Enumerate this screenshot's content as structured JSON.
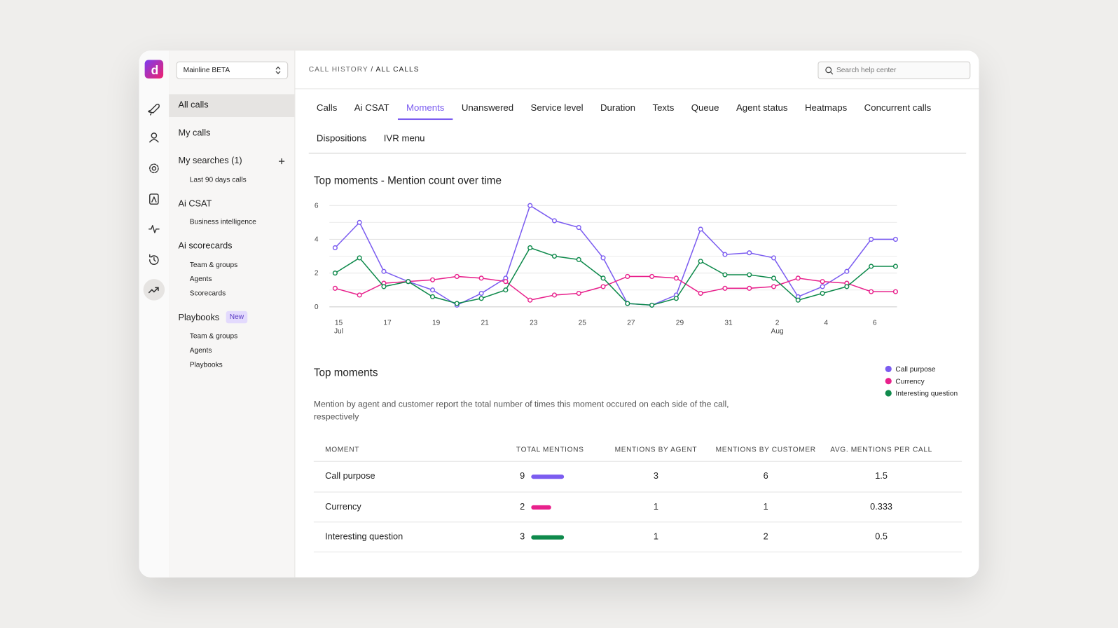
{
  "workspace": "Mainline BETA",
  "sidebar": {
    "sections": [
      {
        "title": "All calls",
        "items": []
      },
      {
        "title": "My calls",
        "items": []
      },
      {
        "title": "My searches (1)",
        "items": [
          "Last 90 days calls"
        ]
      },
      {
        "title": "Ai  CSAT",
        "items": [
          "Business intelligence"
        ]
      },
      {
        "title": "Ai scorecards",
        "items": [
          "Team & groups",
          "Agents",
          "Scorecards"
        ]
      },
      {
        "title": "Playbooks",
        "badge": "New",
        "items": [
          "Team & groups",
          "Agents",
          "Playbooks"
        ]
      }
    ],
    "active": 0
  },
  "header": {
    "parent": "CALL HISTORY",
    "separator": "/",
    "current": "ALL CALLS",
    "search_placeholder": "Search help center"
  },
  "tabs": {
    "items": [
      "Calls",
      "Ai CSAT",
      "Moments",
      "Unanswered",
      "Service level",
      "Duration",
      "Texts",
      "Queue",
      "Agent status",
      "Heatmaps",
      "Concurrent calls",
      "Dispositions",
      "IVR menu"
    ],
    "active": 2
  },
  "chart_data": {
    "type": "line",
    "title": "Top moments - Mention count over time",
    "categories": [
      "15 Jul",
      null,
      "17",
      null,
      "19",
      null,
      "21",
      null,
      "23",
      null,
      "25",
      null,
      "27",
      null,
      "29",
      null,
      "31",
      null,
      "2 Aug",
      null,
      "4",
      null,
      "6",
      null
    ],
    "series": [
      {
        "name": "Call purpose",
        "color": "#7b5cf0",
        "values": [
          3.5,
          5.0,
          2.1,
          1.5,
          1.0,
          0.1,
          0.8,
          1.7,
          6.0,
          5.1,
          4.7,
          2.9,
          0.2,
          0.1,
          0.7,
          4.6,
          3.1,
          3.2,
          2.9,
          0.6,
          1.2,
          2.1,
          4.0,
          4.0
        ]
      },
      {
        "name": "Currency",
        "color": "#e8218c",
        "values": [
          1.1,
          0.7,
          1.4,
          1.5,
          1.6,
          1.8,
          1.7,
          1.5,
          0.4,
          0.7,
          0.8,
          1.2,
          1.8,
          1.8,
          1.7,
          0.8,
          1.1,
          1.1,
          1.2,
          1.7,
          1.5,
          1.4,
          0.9,
          0.9
        ]
      },
      {
        "name": "Interesting question",
        "color": "#0f8a4c",
        "values": [
          2.0,
          2.9,
          1.2,
          1.5,
          0.6,
          0.2,
          0.5,
          1.0,
          3.5,
          3.0,
          2.8,
          1.7,
          0.2,
          0.1,
          0.5,
          2.7,
          1.9,
          1.9,
          1.7,
          0.4,
          0.8,
          1.2,
          2.4,
          2.4
        ]
      }
    ],
    "ylim": [
      0,
      6
    ],
    "yticks": [
      0,
      2,
      4,
      6
    ],
    "yminorticks": [
      1,
      3,
      5
    ],
    "grid": true,
    "legend": "right"
  },
  "moments": {
    "title": "Top moments",
    "description": "Mention by agent and customer report the total number of times this moment occured on each side of the call, respectively",
    "columns": [
      "MOMENT",
      "TOTAL MENTIONS",
      "MENTIONS BY AGENT",
      "MENTIONS BY CUSTOMER",
      "AVG. MENTIONS PER CALL"
    ],
    "rows": [
      [
        "Call purpose",
        9,
        3,
        6,
        1.5
      ],
      [
        "Currency",
        2,
        1,
        1,
        0.333
      ],
      [
        "Interesting question",
        3,
        1,
        2,
        0.5
      ]
    ]
  }
}
